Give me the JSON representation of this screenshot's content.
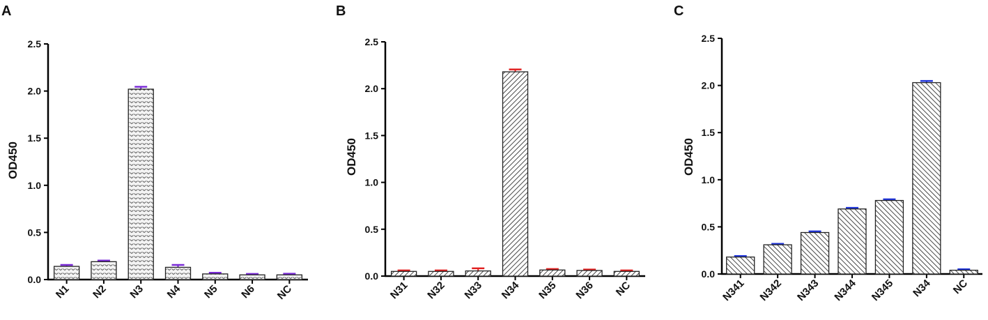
{
  "chart_data": [
    {
      "panel": "A",
      "type": "bar",
      "ylabel": "OD450",
      "ylim": [
        0,
        2.5
      ],
      "yticks": [
        "0.0",
        "0.5",
        "1.0",
        "1.5",
        "2.0",
        "2.5"
      ],
      "categories": [
        "N1",
        "N2",
        "N3",
        "N4",
        "N5",
        "N6",
        "NC"
      ],
      "values": [
        0.14,
        0.19,
        2.02,
        0.13,
        0.06,
        0.05,
        0.05
      ],
      "errors": [
        0.015,
        0.012,
        0.025,
        0.025,
        0.012,
        0.01,
        0.012
      ],
      "pattern": "dots",
      "error_color": "#7a2bd6",
      "bar_fill": "#eeeeee"
    },
    {
      "panel": "B",
      "type": "bar",
      "ylabel": "OD450",
      "ylim": [
        0,
        2.5
      ],
      "yticks": [
        "0.0",
        "0.5",
        "1.0",
        "1.5",
        "2.0",
        "2.5"
      ],
      "categories": [
        "N31",
        "N32",
        "N33",
        "N34",
        "N35",
        "N36",
        "NC"
      ],
      "values": [
        0.05,
        0.05,
        0.055,
        2.18,
        0.065,
        0.06,
        0.05
      ],
      "errors": [
        0.01,
        0.01,
        0.028,
        0.025,
        0.01,
        0.01,
        0.01
      ],
      "pattern": "diagonal-right",
      "error_color": "#e02020",
      "bar_fill": "#ffffff"
    },
    {
      "panel": "C",
      "type": "bar",
      "ylabel": "OD450",
      "ylim": [
        0,
        2.5
      ],
      "yticks": [
        "0.0",
        "0.5",
        "1.0",
        "1.5",
        "2.0",
        "2.5"
      ],
      "categories": [
        "N341",
        "N342",
        "N343",
        "N344",
        "N345",
        "N34",
        "NC"
      ],
      "values": [
        0.18,
        0.31,
        0.44,
        0.69,
        0.78,
        2.03,
        0.04
      ],
      "errors": [
        0.01,
        0.01,
        0.012,
        0.012,
        0.012,
        0.018,
        0.01
      ],
      "pattern": "diagonal-left",
      "error_color": "#2035d8",
      "bar_fill": "#ffffff"
    }
  ]
}
